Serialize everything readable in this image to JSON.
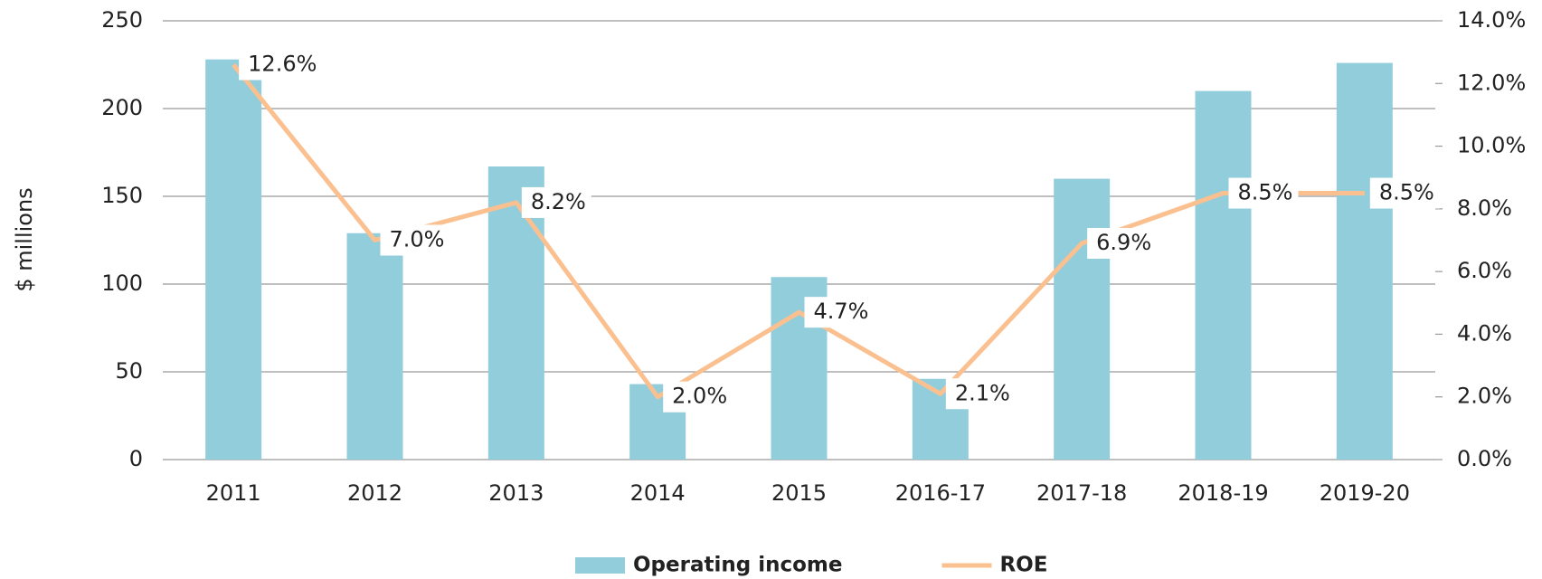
{
  "chart_data": {
    "type": "bar-line",
    "y_label": "$ millions",
    "categories": [
      "2011",
      "2012",
      "2013",
      "2014",
      "2015",
      "2016-17",
      "2017-18",
      "2018-19",
      "2019-20"
    ],
    "series": [
      {
        "name": "Operating income",
        "type": "bar",
        "color": "#92cddc",
        "values": [
          228,
          129,
          167,
          43,
          104,
          46,
          160,
          210,
          226
        ]
      },
      {
        "name": "ROE",
        "type": "line",
        "axis": "y2",
        "color": "#fac090",
        "values": [
          12.6,
          7.0,
          8.2,
          2.0,
          4.7,
          2.1,
          6.9,
          8.5,
          8.5
        ],
        "value_labels": [
          "12.6%",
          "7.0%",
          "8.2%",
          "2.0%",
          "4.7%",
          "2.1%",
          "6.9%",
          "8.5%",
          "8.5%"
        ]
      }
    ],
    "ylim": [
      0,
      250
    ],
    "yticks": [
      0,
      50,
      100,
      150,
      200,
      250
    ],
    "y2lim": [
      0,
      14
    ],
    "y2ticks": [
      {
        "value": 0,
        "label": "0.0%"
      },
      {
        "value": 2,
        "label": "2.0%"
      },
      {
        "value": 4,
        "label": "4.0%"
      },
      {
        "value": 6,
        "label": "6.0%"
      },
      {
        "value": 8,
        "label": "8.0%"
      },
      {
        "value": 10,
        "label": "10.0%"
      },
      {
        "value": 12,
        "label": "12.0%"
      },
      {
        "value": 14,
        "label": "14.0%"
      }
    ],
    "grid": true,
    "legend": "bottom"
  }
}
